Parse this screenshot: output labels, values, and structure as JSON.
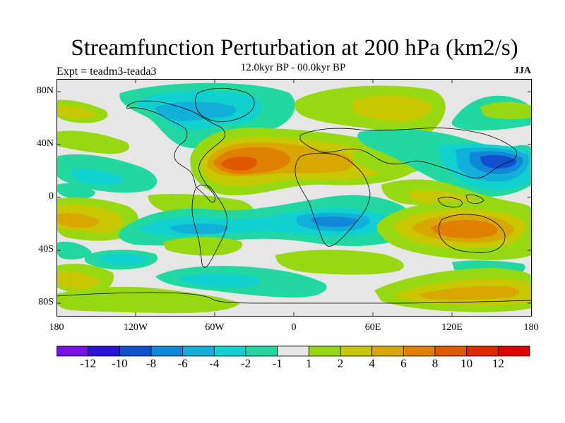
{
  "title": "Streamfunction Perturbation at 200 hPa (km2/s)",
  "subtitle_left": "Expt = teadm3-teada3",
  "subtitle_center": "12.0kyr BP - 00.0kyr BP",
  "subtitle_right": "JJA",
  "lat_labels": [
    "80N",
    "40N",
    "0",
    "40S",
    "80S"
  ],
  "lon_labels": [
    "180",
    "120W",
    "60W",
    "0",
    "60E",
    "120E",
    "180"
  ],
  "colorbar": {
    "labels": [
      "-12",
      "-10",
      "-8",
      "-6",
      "-4",
      "-2",
      "-1",
      "1",
      "2",
      "4",
      "6",
      "8",
      "10",
      "12"
    ],
    "colors": [
      "#7a10e8",
      "#2a10d8",
      "#1050d0",
      "#1088d8",
      "#10b0d8",
      "#10d0d0",
      "#20d8a0",
      "#e6e6e6",
      "#98d810",
      "#c8c800",
      "#d8a800",
      "#e08000",
      "#e05800",
      "#e02800",
      "#e00000"
    ]
  }
}
